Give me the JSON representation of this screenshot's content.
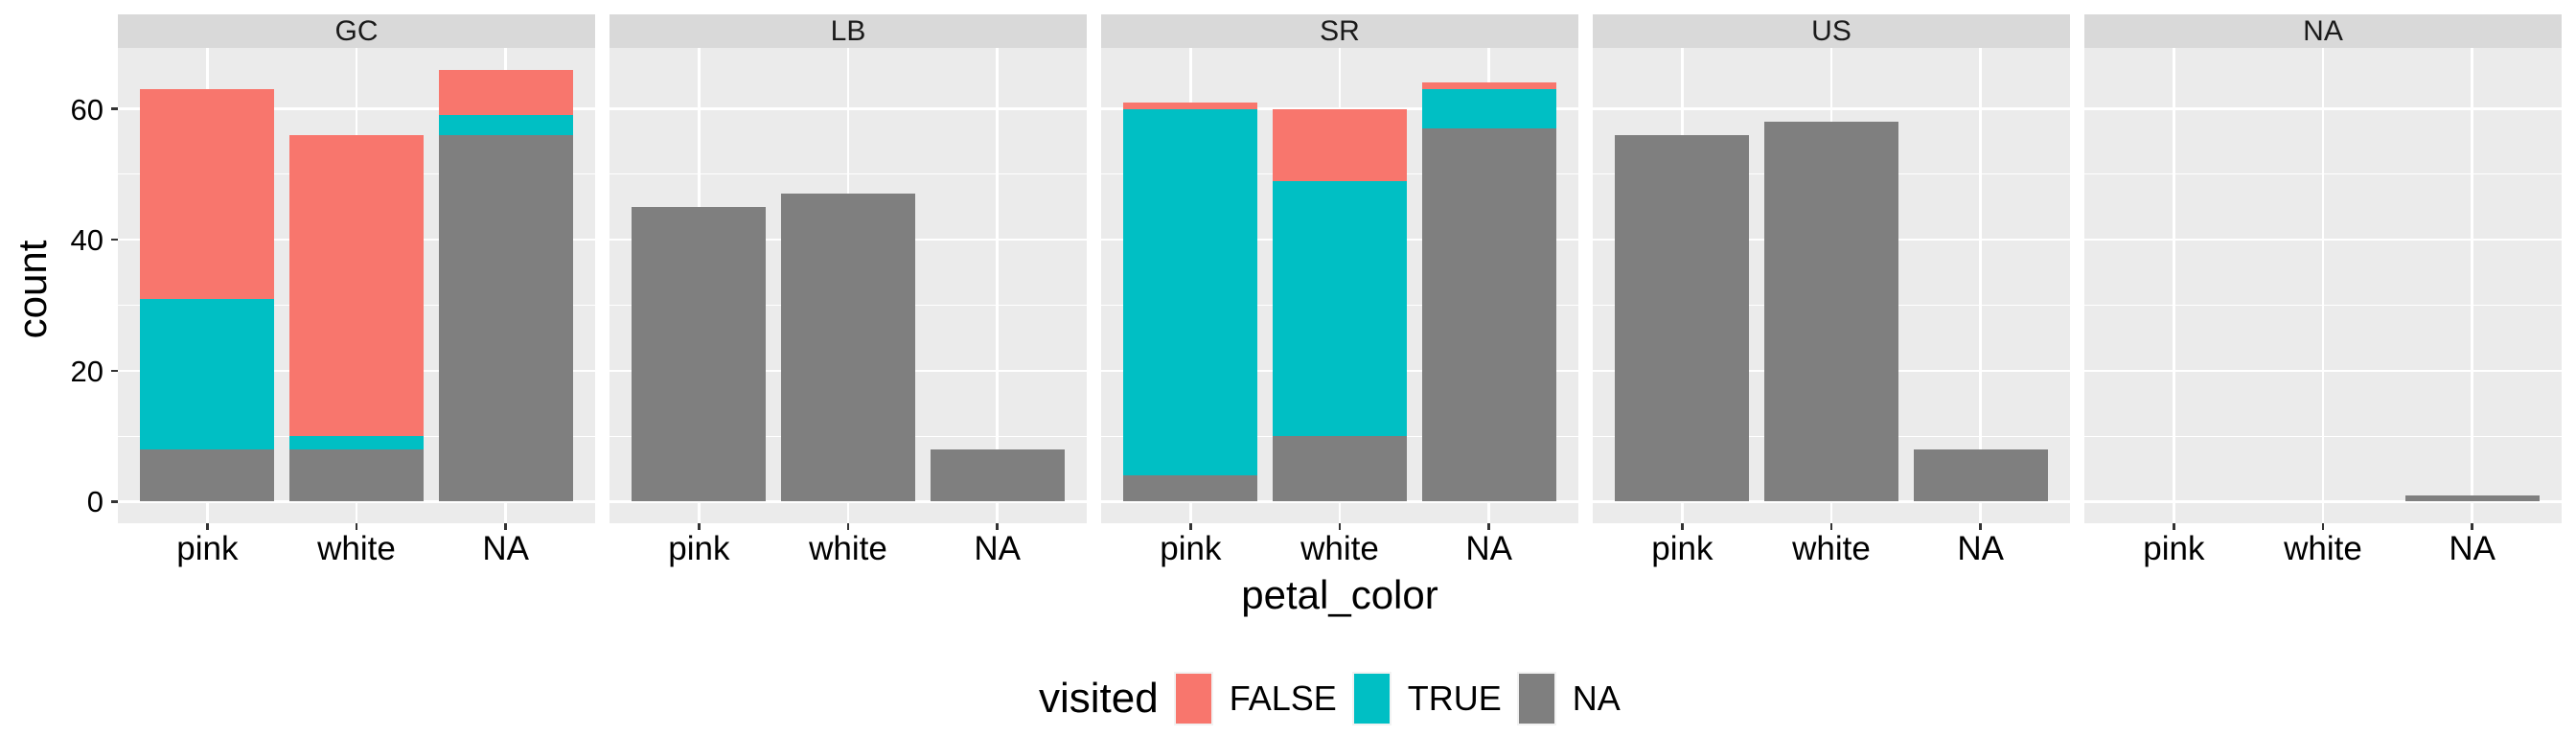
{
  "chart_data": {
    "type": "bar",
    "subtype": "stacked",
    "facet_variable": "",
    "facets": [
      "GC",
      "LB",
      "SR",
      "US",
      "NA"
    ],
    "categories": [
      "pink",
      "white",
      "NA"
    ],
    "xlabel": "petal_color",
    "ylabel": "count",
    "ylim": [
      -3.3,
      69.3
    ],
    "yticks": [
      0,
      20,
      40,
      60
    ],
    "yticks_minor": [
      10,
      30,
      50
    ],
    "grid": true,
    "legend": {
      "title": "visited",
      "position": "bottom",
      "entries": [
        {
          "label": "FALSE",
          "color": "#F8766D"
        },
        {
          "label": "TRUE",
          "color": "#00BFC4"
        },
        {
          "label": "NA",
          "color": "#7F7F7F"
        }
      ]
    },
    "series": [
      {
        "name": "NA",
        "color": "#7F7F7F",
        "values": {
          "GC": [
            8,
            8,
            56
          ],
          "LB": [
            45,
            47,
            8
          ],
          "SR": [
            4,
            10,
            57
          ],
          "US": [
            56,
            58,
            8
          ],
          "NA": [
            0,
            0,
            1
          ]
        }
      },
      {
        "name": "TRUE",
        "color": "#00BFC4",
        "values": {
          "GC": [
            23,
            2,
            3
          ],
          "LB": [
            0,
            0,
            0
          ],
          "SR": [
            56,
            39,
            6
          ],
          "US": [
            0,
            0,
            0
          ],
          "NA": [
            0,
            0,
            0
          ]
        }
      },
      {
        "name": "FALSE",
        "color": "#F8766D",
        "values": {
          "GC": [
            32,
            46,
            7
          ],
          "LB": [
            0,
            0,
            0
          ],
          "SR": [
            1,
            11,
            1
          ],
          "US": [
            0,
            0,
            0
          ],
          "NA": [
            0,
            0,
            0
          ]
        }
      }
    ],
    "totals": {
      "GC": [
        63,
        56,
        66
      ],
      "LB": [
        45,
        47,
        8
      ],
      "SR": [
        61,
        60,
        64
      ],
      "US": [
        56,
        58,
        8
      ],
      "NA": [
        0,
        0,
        1
      ]
    }
  },
  "axes": {
    "x_title": "petal_color",
    "y_title": "count",
    "y_tick_labels": [
      "0",
      "20",
      "40",
      "60"
    ]
  },
  "strips": [
    "GC",
    "LB",
    "SR",
    "US",
    "NA"
  ],
  "legend": {
    "title": "visited",
    "labels": [
      "FALSE",
      "TRUE",
      "NA"
    ],
    "colors": [
      "#F8766D",
      "#00BFC4",
      "#7F7F7F"
    ]
  }
}
